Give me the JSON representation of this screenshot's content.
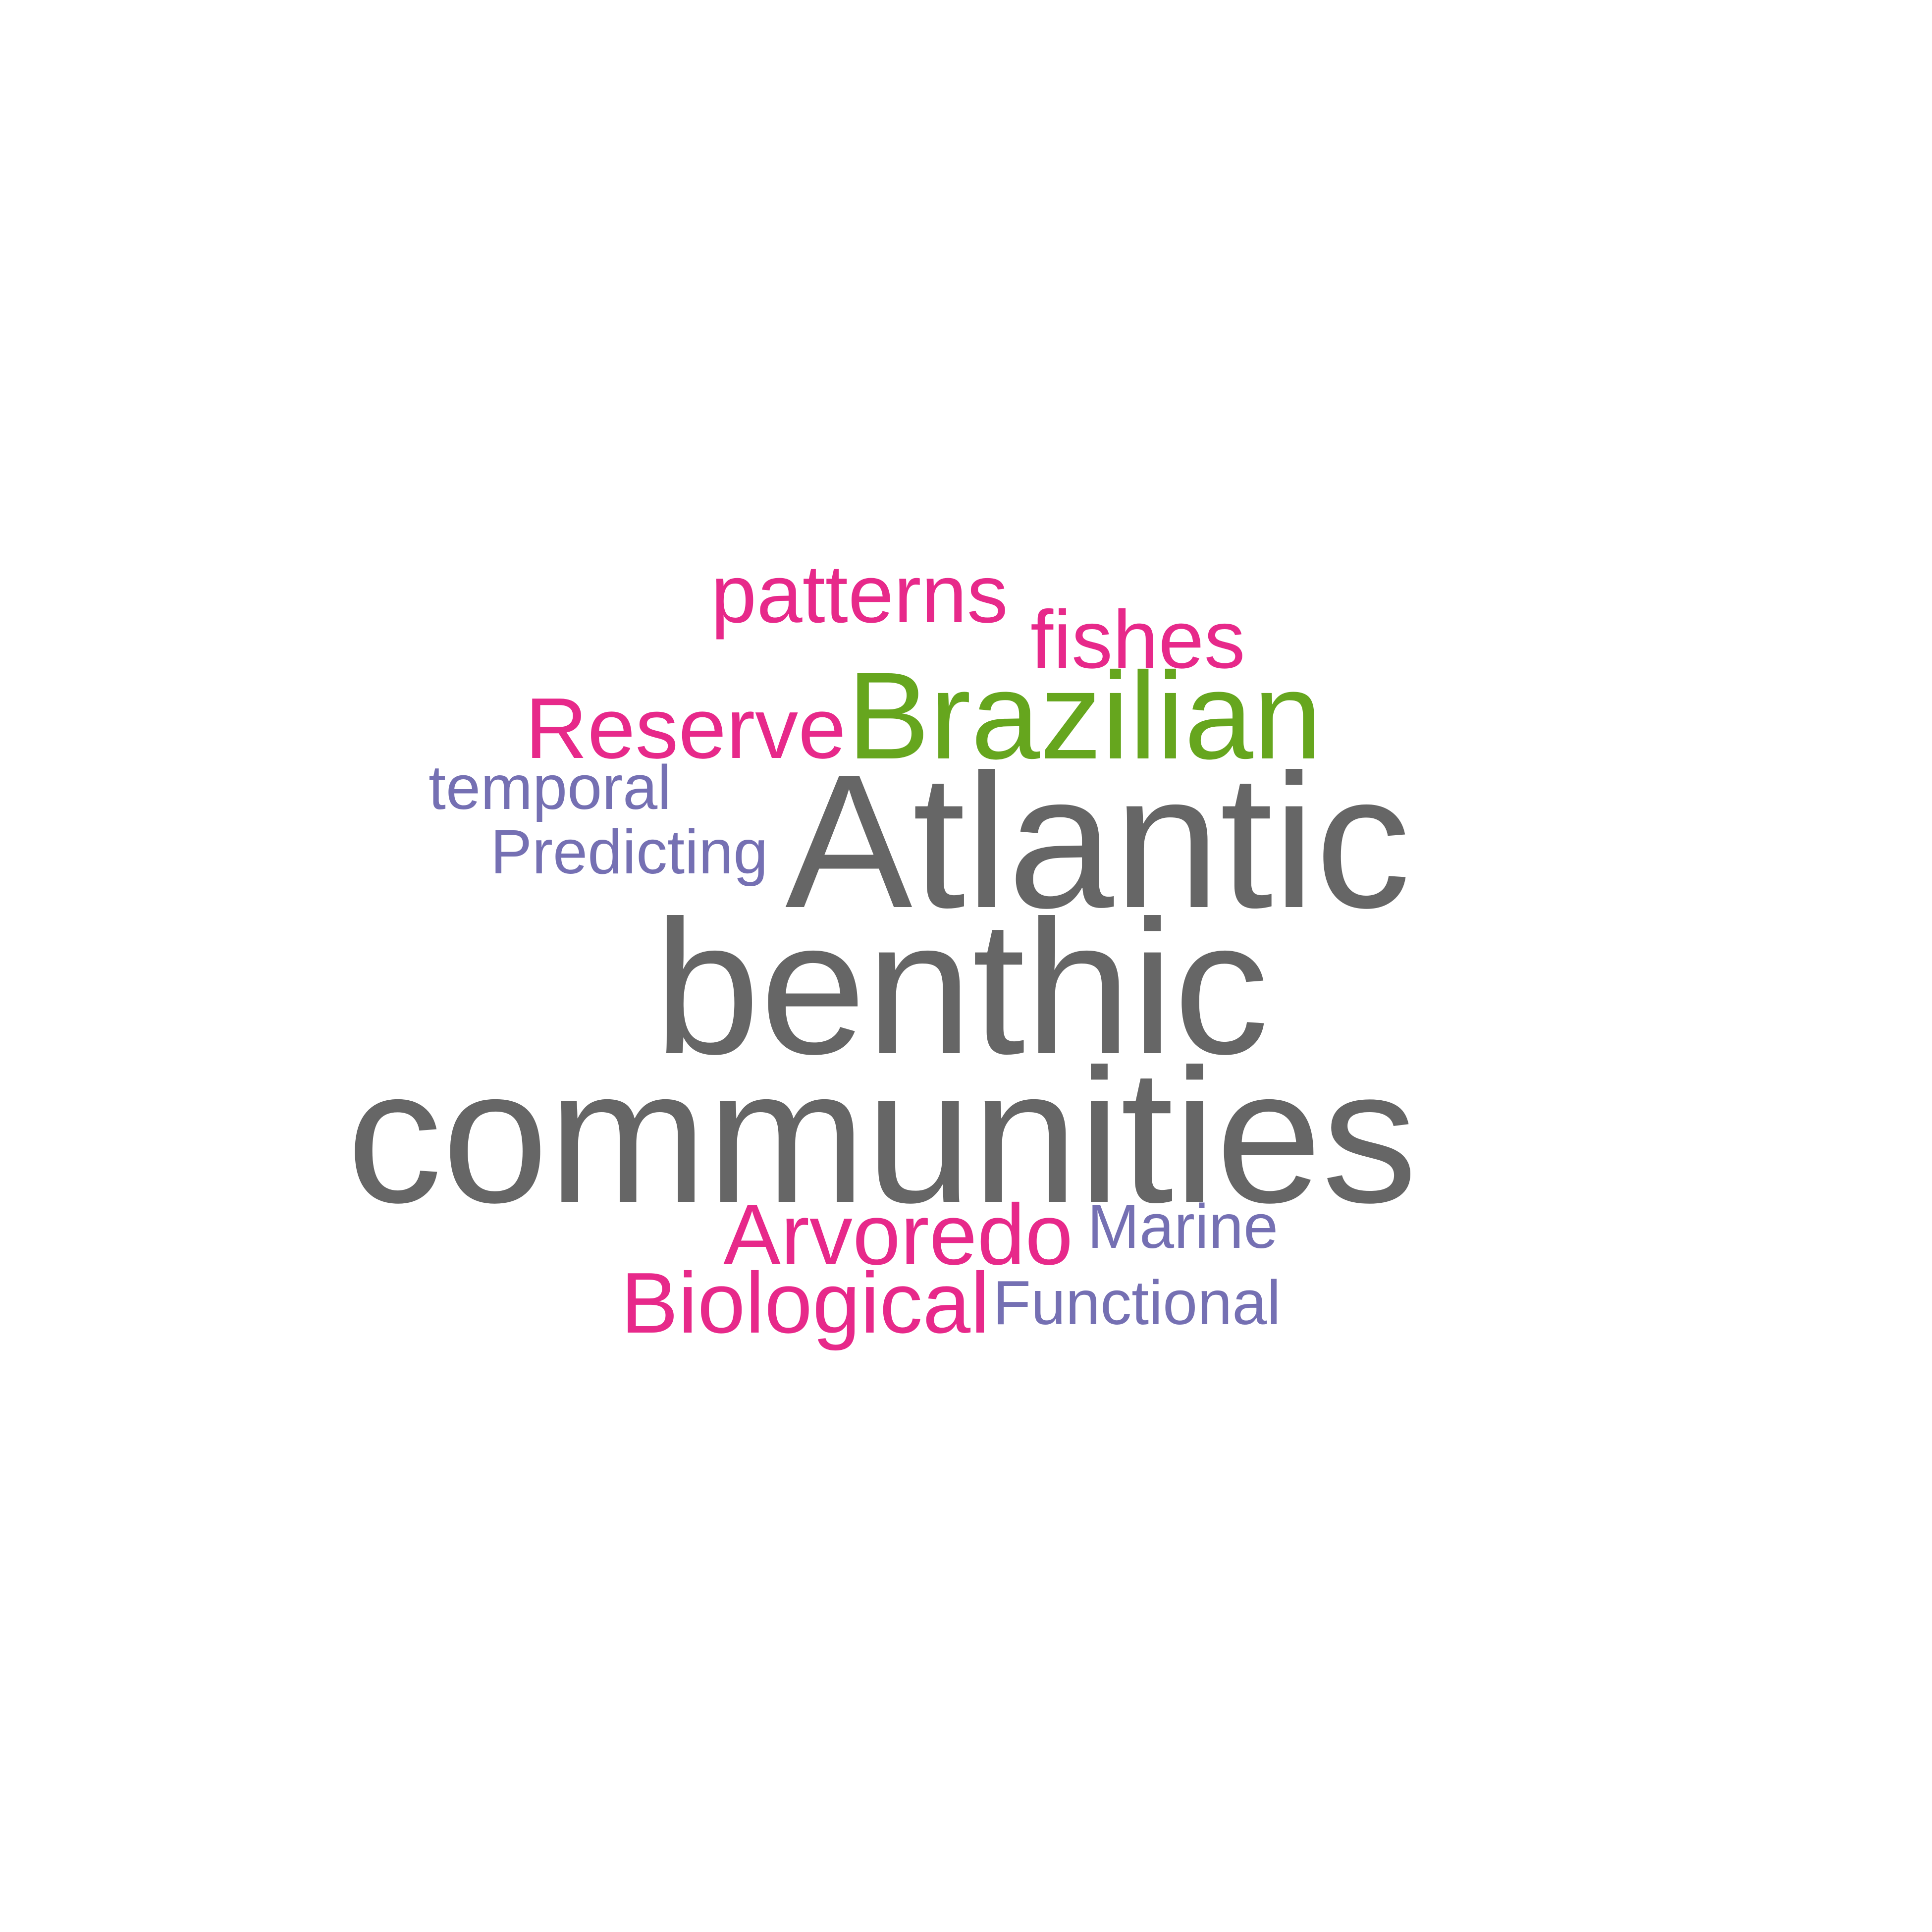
{
  "colors": {
    "gray": "#666666",
    "magenta": "#e7298a",
    "green": "#66a61e",
    "purple": "#7570b3"
  },
  "words": {
    "patterns": {
      "text": "patterns",
      "color": "#e7298a"
    },
    "fishes": {
      "text": "fishes",
      "color": "#e7298a"
    },
    "reserve": {
      "text": "Reserve",
      "color": "#e7298a"
    },
    "brazilian": {
      "text": "Brazilian",
      "color": "#66a61e"
    },
    "temporal": {
      "text": "temporal",
      "color": "#7570b3"
    },
    "predicting": {
      "text": "Predicting",
      "color": "#7570b3"
    },
    "atlantic": {
      "text": "Atlantic",
      "color": "#666666"
    },
    "benthic": {
      "text": "benthic",
      "color": "#666666"
    },
    "communities": {
      "text": "communities",
      "color": "#666666"
    },
    "arvoredo": {
      "text": "Arvoredo",
      "color": "#e7298a"
    },
    "marine": {
      "text": "Marine",
      "color": "#7570b3"
    },
    "biological": {
      "text": "Biological",
      "color": "#e7298a"
    },
    "functional": {
      "text": "Functional",
      "color": "#7570b3"
    }
  }
}
